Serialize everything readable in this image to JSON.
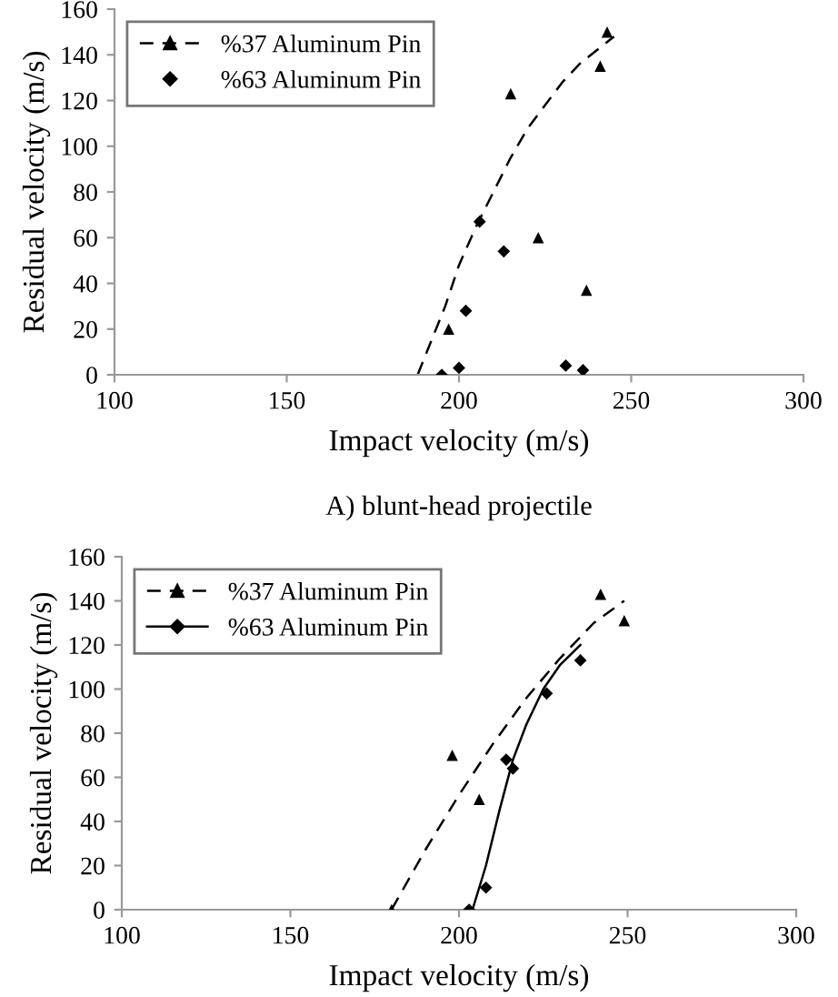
{
  "chart_data": [
    {
      "type": "scatter",
      "xlabel": "Impact velocity (m/s)",
      "ylabel": "Residual velocity (m/s)",
      "xlim": [
        100,
        300
      ],
      "xticks": [
        100,
        150,
        200,
        250,
        300
      ],
      "ylim": [
        0,
        160
      ],
      "yticks": [
        0,
        20,
        40,
        60,
        80,
        100,
        120,
        140,
        160
      ],
      "grid": false,
      "legend": "top left",
      "annotations": [
        "A) blunt-head projectile"
      ],
      "series": [
        {
          "name": "%37 Aluminum Pin",
          "marker": "triangle",
          "color": "#000000",
          "x": [
            197,
            215,
            223,
            237,
            241,
            243
          ],
          "values": [
            20,
            123,
            60,
            37,
            135,
            150
          ]
        },
        {
          "type": "line",
          "marker": "none",
          "line_style": "dashed",
          "color": "#000000",
          "x": [
            188,
            192,
            196,
            200,
            205,
            210,
            215,
            220,
            225,
            230,
            235,
            240,
            245
          ],
          "values": [
            0,
            15,
            30,
            48,
            65,
            80,
            95,
            108,
            118,
            128,
            136,
            142,
            148
          ]
        },
        {
          "name": "%63 Aluminum Pin",
          "marker": "diamond",
          "color": "#000000",
          "x": [
            195,
            200,
            202,
            206,
            213,
            231,
            236
          ],
          "values": [
            0,
            3,
            28,
            67,
            54,
            4,
            2
          ]
        }
      ]
    },
    {
      "type": "scatter",
      "xlabel": "Impact velocity (m/s)",
      "ylabel": "Residual velocity (m/s)",
      "xlim": [
        100,
        300
      ],
      "xticks": [
        100,
        150,
        200,
        250,
        300
      ],
      "ylim": [
        0,
        160
      ],
      "yticks": [
        0,
        20,
        40,
        60,
        80,
        100,
        120,
        140,
        160
      ],
      "grid": false,
      "legend": "top left",
      "series": [
        {
          "name": "%37 Aluminum Pin",
          "marker": "triangle",
          "color": "#000000",
          "x": [
            180,
            198,
            206,
            242,
            249
          ],
          "values": [
            0,
            70,
            50,
            143,
            131
          ]
        },
        {
          "type": "line",
          "marker": "none",
          "line_style": "dashed",
          "color": "#000000",
          "x": [
            180,
            190,
            200,
            210,
            220,
            230,
            240,
            249
          ],
          "values": [
            0,
            27,
            52,
            75,
            96,
            114,
            130,
            140
          ]
        },
        {
          "name": "%63 Aluminum Pin",
          "marker": "diamond",
          "color": "#000000",
          "x": [
            203,
            208,
            214,
            216,
            226,
            236
          ],
          "values": [
            0,
            10,
            68,
            64,
            98,
            113
          ]
        },
        {
          "type": "line",
          "marker": "none",
          "line_style": "solid",
          "color": "#000000",
          "x": [
            204,
            208,
            212,
            216,
            220,
            225,
            230,
            236
          ],
          "values": [
            0,
            20,
            45,
            68,
            84,
            100,
            111,
            120
          ]
        }
      ]
    }
  ]
}
